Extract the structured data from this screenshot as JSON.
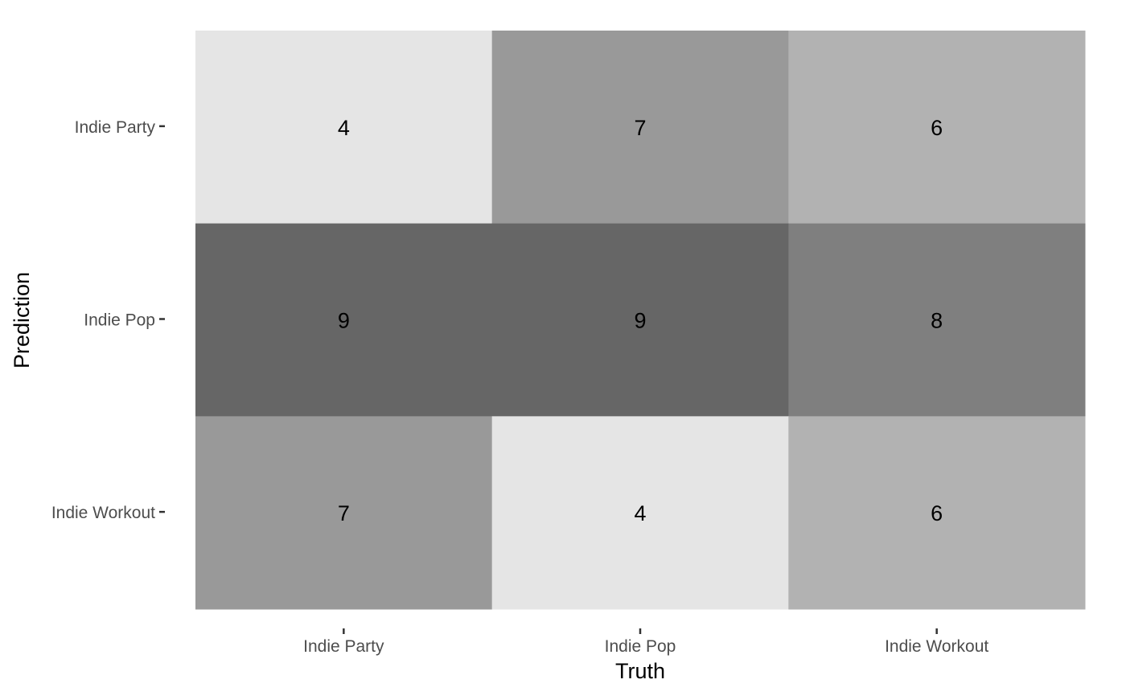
{
  "chart_data": {
    "type": "heatmap",
    "title": "",
    "xlabel": "Truth",
    "ylabel": "Prediction",
    "x_categories": [
      "Indie Party",
      "Indie Pop",
      "Indie Workout"
    ],
    "y_categories": [
      "Indie Party",
      "Indie Pop",
      "Indie Workout"
    ],
    "values": [
      [
        4,
        7,
        6
      ],
      [
        9,
        9,
        8
      ],
      [
        7,
        4,
        6
      ]
    ],
    "value_range": [
      4,
      9
    ],
    "color_low": "#e5e5e5",
    "color_high": "#666666",
    "grid": false,
    "legend": "none"
  }
}
